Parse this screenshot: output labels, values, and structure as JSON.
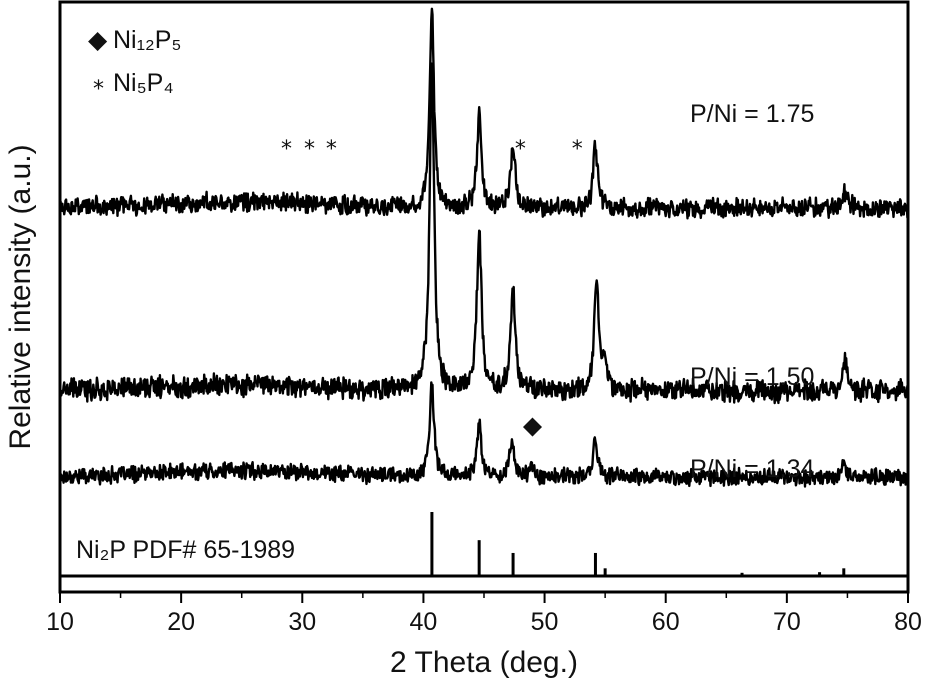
{
  "chart_data": {
    "type": "line",
    "title": "",
    "xlabel": "2 Theta (deg.)",
    "ylabel": "Relative intensity (a.u.)",
    "xlim": [
      10,
      80
    ],
    "x_ticks": [
      "10",
      "20",
      "30",
      "40",
      "50",
      "60",
      "70",
      "80"
    ],
    "y_ticks_shown": false,
    "series": [
      {
        "name": "P/Ni = 1.34",
        "baseline": 0.2,
        "noise": 0.03,
        "peaks": [
          {
            "x": 40.7,
            "h": 0.42
          },
          {
            "x": 44.6,
            "h": 0.24
          },
          {
            "x": 47.3,
            "h": 0.17
          },
          {
            "x": 48.9,
            "h": 0.05
          },
          {
            "x": 54.2,
            "h": 0.17
          },
          {
            "x": 74.7,
            "h": 0.06
          }
        ]
      },
      {
        "name": "P/Ni = 1.50",
        "baseline": 0.6,
        "noise": 0.04,
        "peaks": [
          {
            "x": 40.7,
            "h": 1.55
          },
          {
            "x": 44.6,
            "h": 0.75
          },
          {
            "x": 47.4,
            "h": 0.48
          },
          {
            "x": 54.3,
            "h": 0.52
          },
          {
            "x": 55.0,
            "h": 0.12
          },
          {
            "x": 74.8,
            "h": 0.14
          }
        ]
      },
      {
        "name": "P/Ni = 1.75",
        "baseline": 1.45,
        "noise": 0.035,
        "peaks": [
          {
            "x": 40.7,
            "h": 0.9
          },
          {
            "x": 44.6,
            "h": 0.42
          },
          {
            "x": 47.4,
            "h": 0.29
          },
          {
            "x": 54.2,
            "h": 0.29
          },
          {
            "x": 74.8,
            "h": 0.08
          }
        ]
      }
    ],
    "reference": {
      "name": "Ni2P PDF# 65-1989",
      "sticks": [
        {
          "x": 40.7,
          "h": 1.0
        },
        {
          "x": 44.6,
          "h": 0.56
        },
        {
          "x": 47.4,
          "h": 0.36
        },
        {
          "x": 54.2,
          "h": 0.36
        },
        {
          "x": 55.0,
          "h": 0.12
        },
        {
          "x": 66.3,
          "h": 0.05
        },
        {
          "x": 72.7,
          "h": 0.06
        },
        {
          "x": 74.7,
          "h": 0.12
        }
      ]
    },
    "markers": [
      {
        "symbol": "*",
        "phase": "Ni5P4",
        "x": 28.7,
        "series": "P/Ni = 1.75"
      },
      {
        "symbol": "*",
        "phase": "Ni5P4",
        "x": 30.6,
        "series": "P/Ni = 1.75"
      },
      {
        "symbol": "*",
        "phase": "Ni5P4",
        "x": 32.4,
        "series": "P/Ni = 1.75"
      },
      {
        "symbol": "*",
        "phase": "Ni5P4",
        "x": 48.0,
        "series": "P/Ni = 1.75"
      },
      {
        "symbol": "*",
        "phase": "Ni5P4",
        "x": 52.7,
        "series": "P/Ni = 1.75"
      },
      {
        "symbol": "◆",
        "phase": "Ni12P5",
        "x": 49.0,
        "series": "P/Ni = 1.34"
      }
    ],
    "legend": {
      "placement": "top-left",
      "entries": [
        {
          "symbol": "◆",
          "label": "Ni₁₂P₅"
        },
        {
          "symbol": "*",
          "label": "Ni₅P₄"
        }
      ]
    },
    "series_labels": {
      "s175": "P/Ni = 1.75",
      "s150": "P/Ni = 1.50",
      "s134": "P/Ni = 1.34"
    },
    "reference_label": "Ni₂P PDF# 65-1989"
  }
}
